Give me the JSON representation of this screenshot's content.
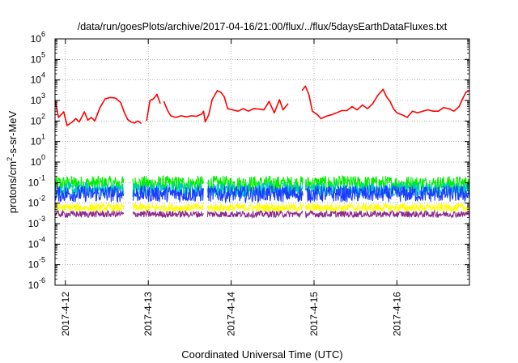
{
  "chart_data": {
    "type": "line",
    "title": "/data/run/goesPlots/archive/2017-04-16/21:00/flux/../flux/5daysEarthDataFluxes.txt",
    "xlabel": "Coordinated Universal Time (UTC)",
    "ylabel": {
      "prefix": "protons/cm",
      "sup": "2",
      "suffix": "-s-sr-MeV"
    },
    "yscale": "log",
    "ylim": [
      1e-06,
      1000000.0
    ],
    "y_ticks": [
      {
        "base": "10",
        "exp": "-6"
      },
      {
        "base": "10",
        "exp": "-5"
      },
      {
        "base": "10",
        "exp": "-4"
      },
      {
        "base": "10",
        "exp": "-3"
      },
      {
        "base": "10",
        "exp": "-2"
      },
      {
        "base": "10",
        "exp": "-1"
      },
      {
        "base": "10",
        "exp": "0"
      },
      {
        "base": "10",
        "exp": "1"
      },
      {
        "base": "10",
        "exp": "2"
      },
      {
        "base": "10",
        "exp": "3"
      },
      {
        "base": "10",
        "exp": "4"
      },
      {
        "base": "10",
        "exp": "5"
      },
      {
        "base": "10",
        "exp": "6"
      }
    ],
    "xlim": [
      "2017-04-11 21:00",
      "2017-04-16 21:00"
    ],
    "x_ticks": [
      "2017-4-12",
      "2017-4-13",
      "2017-4-14",
      "2017-4-15",
      "2017-4-16"
    ],
    "grid": true,
    "data_gaps": [
      [
        "2017-04-12 17:00",
        "2017-04-12 19:30"
      ],
      [
        "2017-04-13 16:00",
        "2017-04-13 17:00"
      ],
      [
        "2017-04-14 20:45",
        "2017-04-14 21:30"
      ]
    ],
    "series": [
      {
        "color": "#ff0000",
        "values": [
          [
            "2017-04-11 21:00",
            1000
          ],
          [
            "2017-04-11 22:00",
            150
          ],
          [
            "2017-04-11 23:30",
            280
          ],
          [
            "2017-04-12 00:30",
            60
          ],
          [
            "2017-04-12 02:00",
            90
          ],
          [
            "2017-04-12 03:00",
            130
          ],
          [
            "2017-04-12 04:00",
            90
          ],
          [
            "2017-04-12 05:30",
            280
          ],
          [
            "2017-04-12 06:30",
            110
          ],
          [
            "2017-04-12 07:30",
            150
          ],
          [
            "2017-04-12 08:30",
            100
          ],
          [
            "2017-04-12 10:00",
            450
          ],
          [
            "2017-04-12 11:30",
            1200
          ],
          [
            "2017-04-12 13:00",
            1400
          ],
          [
            "2017-04-12 14:30",
            1300
          ],
          [
            "2017-04-12 16:00",
            800
          ],
          [
            "2017-04-12 17:00",
            280
          ],
          [
            "2017-04-12 18:00",
            120
          ],
          [
            "2017-04-12 19:00",
            90
          ],
          [
            "2017-04-12 20:00",
            80
          ],
          [
            "2017-04-12 21:00",
            100
          ],
          [
            "2017-04-12 22:00",
            75
          ],
          null,
          [
            "2017-04-12 23:30",
            100
          ],
          [
            "2017-04-13 00:30",
            1000
          ],
          [
            "2017-04-13 01:30",
            1200
          ],
          [
            "2017-04-13 02:30",
            2000
          ],
          [
            "2017-04-13 03:30",
            700
          ],
          null,
          [
            "2017-04-13 04:30",
            900
          ],
          [
            "2017-04-13 05:30",
            350
          ],
          [
            "2017-04-13 06:30",
            180
          ],
          [
            "2017-04-13 08:00",
            150
          ],
          [
            "2017-04-13 09:30",
            180
          ],
          [
            "2017-04-13 11:00",
            160
          ],
          [
            "2017-04-13 12:30",
            180
          ],
          [
            "2017-04-13 14:00",
            170
          ],
          [
            "2017-04-13 15:30",
            220
          ],
          [
            "2017-04-13 16:00",
            300
          ],
          [
            "2017-04-13 16:30",
            90
          ],
          [
            "2017-04-13 17:30",
            200
          ],
          [
            "2017-04-13 18:30",
            1100
          ],
          [
            "2017-04-13 20:00",
            3000
          ],
          [
            "2017-04-13 21:00",
            2500
          ],
          [
            "2017-04-13 22:00",
            1500
          ],
          [
            "2017-04-13 23:00",
            400
          ],
          [
            "2017-04-14 00:30",
            350
          ],
          [
            "2017-04-14 02:00",
            300
          ],
          [
            "2017-04-14 03:30",
            400
          ],
          [
            "2017-04-14 05:00",
            300
          ],
          [
            "2017-04-14 06:30",
            400
          ],
          [
            "2017-04-14 08:00",
            380
          ],
          [
            "2017-04-14 09:30",
            350
          ],
          [
            "2017-04-14 11:00",
            900
          ],
          [
            "2017-04-14 12:30",
            250
          ],
          [
            "2017-04-14 14:00",
            1100
          ],
          [
            "2017-04-14 15:00",
            350
          ],
          [
            "2017-04-14 16:30",
            700
          ],
          null,
          [
            "2017-04-14 20:30",
            3000
          ],
          [
            "2017-04-14 21:30",
            5000
          ],
          [
            "2017-04-14 22:30",
            2000
          ],
          [
            "2017-04-14 23:30",
            300
          ],
          [
            "2017-04-15 01:00",
            200
          ],
          [
            "2017-04-15 02:00",
            130
          ],
          [
            "2017-04-15 03:30",
            170
          ],
          [
            "2017-04-15 05:00",
            200
          ],
          [
            "2017-04-15 06:30",
            250
          ],
          [
            "2017-04-15 08:00",
            320
          ],
          [
            "2017-04-15 09:30",
            320
          ],
          [
            "2017-04-15 11:00",
            500
          ],
          [
            "2017-04-15 12:30",
            350
          ],
          [
            "2017-04-15 14:00",
            600
          ],
          [
            "2017-04-15 15:30",
            400
          ],
          [
            "2017-04-15 17:00",
            700
          ],
          [
            "2017-04-15 18:30",
            1800
          ],
          [
            "2017-04-15 20:00",
            3500
          ],
          [
            "2017-04-15 21:00",
            1500
          ],
          [
            "2017-04-15 22:00",
            900
          ],
          [
            "2017-04-15 23:00",
            400
          ],
          [
            "2017-04-16 00:00",
            250
          ],
          [
            "2017-04-16 01:30",
            200
          ],
          [
            "2017-04-16 03:00",
            150
          ],
          [
            "2017-04-16 04:30",
            300
          ],
          [
            "2017-04-16 06:00",
            250
          ],
          [
            "2017-04-16 07:30",
            300
          ],
          [
            "2017-04-16 09:00",
            350
          ],
          [
            "2017-04-16 10:30",
            300
          ],
          [
            "2017-04-16 12:00",
            300
          ],
          [
            "2017-04-16 13:30",
            450
          ],
          [
            "2017-04-16 15:00",
            400
          ],
          [
            "2017-04-16 16:30",
            300
          ],
          [
            "2017-04-16 18:00",
            500
          ],
          [
            "2017-04-16 19:00",
            1200
          ],
          [
            "2017-04-16 20:00",
            2500
          ],
          [
            "2017-04-16 21:00",
            3000
          ]
        ]
      },
      {
        "color": "#00ee00",
        "level": 0.09,
        "spread": 0.38
      },
      {
        "color": "#00c8c8",
        "level": 0.045,
        "spread": 0.35
      },
      {
        "color": "#1a3cff",
        "level": 0.028,
        "spread": 0.4
      },
      {
        "color": "#ffff00",
        "level": 0.006,
        "spread": 0.2
      },
      {
        "color": "#8b2a8b",
        "level": 0.0029,
        "spread": 0.16
      }
    ]
  }
}
